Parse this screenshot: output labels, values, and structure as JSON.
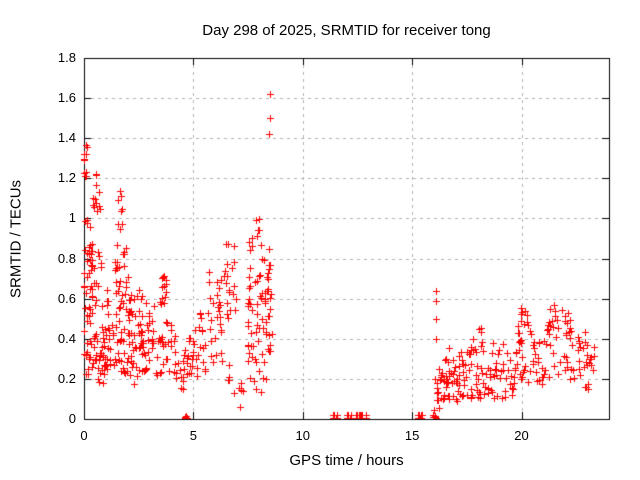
{
  "figure": {
    "background": "#ffffff",
    "axis_color": "#000000",
    "grid_color": "#b0b0b0"
  },
  "chart_data": {
    "type": "scatter",
    "title": "Day 298 of 2025, SRMTID for receiver tong",
    "xlabel": "GPS time / hours",
    "ylabel": "SRMTID / TECUs",
    "xlim": [
      0,
      24
    ],
    "ylim": [
      0,
      1.8
    ],
    "xticks": [
      0,
      5,
      10,
      15,
      20
    ],
    "xtick_labels": [
      "0",
      "5",
      "10",
      "15",
      "20"
    ],
    "yticks": [
      0,
      0.2,
      0.4,
      0.6,
      0.8,
      1,
      1.2,
      1.4,
      1.6,
      1.8
    ],
    "ytick_labels": [
      "0",
      "0.2",
      "0.4",
      "0.6",
      "0.8",
      "1",
      "1.2",
      "1.4",
      "1.6",
      "1.8"
    ],
    "grid": true,
    "legend": "none",
    "marker": "plus",
    "marker_color": "#ff0000",
    "marker_size_px": 7,
    "series_name": "SRMTID",
    "outlier_points": [
      [
        8.5,
        1.62
      ],
      [
        8.48,
        1.5
      ],
      [
        8.45,
        1.42
      ],
      [
        16.08,
        0.64
      ],
      [
        16.1,
        0.59
      ],
      [
        16.11,
        0.5
      ],
      [
        16.09,
        0.4
      ],
      [
        7.12,
        0.06
      ]
    ],
    "zero_value_hours": [
      11.37,
      11.4,
      11.52,
      11.55,
      12.0,
      12.03,
      12.17,
      12.2,
      12.42,
      12.45,
      12.55,
      12.58,
      12.66,
      12.69,
      12.88,
      15.26,
      15.29,
      15.38,
      15.41
    ],
    "clusters_format": "[hour_start, hour_end, tecu_min, tecu_max, n_points]",
    "clusters": [
      [
        0.0,
        0.18,
        1.29,
        1.38,
        6
      ],
      [
        0.0,
        0.12,
        1.17,
        1.24,
        4
      ],
      [
        0.45,
        0.7,
        1.16,
        1.23,
        3
      ],
      [
        0.35,
        0.75,
        1.02,
        1.13,
        9
      ],
      [
        0.05,
        0.45,
        0.93,
        1.01,
        4
      ],
      [
        0.0,
        0.4,
        0.76,
        0.89,
        14
      ],
      [
        0.0,
        0.45,
        0.6,
        0.76,
        12
      ],
      [
        0.0,
        0.35,
        0.44,
        0.56,
        9
      ],
      [
        0.0,
        0.5,
        0.22,
        0.4,
        14
      ],
      [
        0.35,
        0.8,
        0.74,
        0.86,
        6
      ],
      [
        0.4,
        0.95,
        0.55,
        0.68,
        6
      ],
      [
        0.45,
        1.05,
        0.28,
        0.46,
        18
      ],
      [
        0.55,
        1.1,
        0.18,
        0.28,
        9
      ],
      [
        0.85,
        1.45,
        0.26,
        0.47,
        20
      ],
      [
        0.95,
        1.35,
        0.5,
        0.72,
        5
      ],
      [
        1.5,
        1.8,
        0.9,
        1.14,
        9
      ],
      [
        1.4,
        2.0,
        0.78,
        0.9,
        7
      ],
      [
        1.35,
        2.05,
        0.6,
        0.78,
        16
      ],
      [
        1.4,
        2.1,
        0.44,
        0.6,
        13
      ],
      [
        1.45,
        2.2,
        0.26,
        0.44,
        16
      ],
      [
        1.6,
        2.3,
        0.17,
        0.26,
        7
      ],
      [
        2.0,
        2.65,
        0.52,
        0.67,
        11
      ],
      [
        2.0,
        2.7,
        0.38,
        0.52,
        13
      ],
      [
        2.05,
        2.8,
        0.27,
        0.38,
        12
      ],
      [
        2.2,
        2.9,
        0.19,
        0.27,
        7
      ],
      [
        2.8,
        3.55,
        0.42,
        0.59,
        11
      ],
      [
        2.6,
        3.6,
        0.3,
        0.42,
        15
      ],
      [
        2.65,
        3.7,
        0.21,
        0.3,
        9
      ],
      [
        3.55,
        3.8,
        0.5,
        0.76,
        11
      ],
      [
        3.5,
        4.3,
        0.3,
        0.5,
        14
      ],
      [
        3.6,
        4.5,
        0.22,
        0.3,
        10
      ],
      [
        4.1,
        4.6,
        0.15,
        0.22,
        6
      ],
      [
        4.5,
        5.1,
        0.28,
        0.42,
        14
      ],
      [
        4.55,
        5.2,
        0.18,
        0.28,
        8
      ],
      [
        4.6,
        4.75,
        0.0,
        0.02,
        4
      ],
      [
        5.0,
        5.6,
        0.24,
        0.46,
        12
      ],
      [
        5.2,
        5.5,
        0.5,
        0.58,
        3
      ],
      [
        5.6,
        6.3,
        0.52,
        0.74,
        14
      ],
      [
        5.6,
        6.35,
        0.38,
        0.52,
        9
      ],
      [
        5.7,
        6.4,
        0.28,
        0.38,
        5
      ],
      [
        6.3,
        6.95,
        0.6,
        0.8,
        11
      ],
      [
        6.35,
        6.9,
        0.82,
        0.89,
        3
      ],
      [
        6.4,
        7.0,
        0.45,
        0.6,
        6
      ],
      [
        6.6,
        7.35,
        0.12,
        0.3,
        9
      ],
      [
        7.5,
        8.25,
        0.7,
        0.92,
        11
      ],
      [
        7.85,
        8.05,
        0.91,
        1.01,
        6
      ],
      [
        7.45,
        8.3,
        0.5,
        0.7,
        17
      ],
      [
        7.45,
        8.3,
        0.3,
        0.5,
        16
      ],
      [
        7.5,
        8.35,
        0.13,
        0.3,
        11
      ],
      [
        8.25,
        8.6,
        0.45,
        0.7,
        12
      ],
      [
        8.3,
        8.62,
        0.28,
        0.45,
        8
      ],
      [
        8.35,
        8.55,
        0.7,
        0.85,
        6
      ],
      [
        15.92,
        16.12,
        0.0,
        0.02,
        6
      ],
      [
        16.0,
        16.3,
        0.04,
        0.2,
        10
      ],
      [
        16.2,
        17.3,
        0.08,
        0.26,
        38
      ],
      [
        16.4,
        17.3,
        0.26,
        0.36,
        10
      ],
      [
        17.3,
        18.4,
        0.1,
        0.28,
        30
      ],
      [
        17.5,
        18.45,
        0.28,
        0.4,
        12
      ],
      [
        17.95,
        18.2,
        0.4,
        0.46,
        3
      ],
      [
        18.4,
        19.6,
        0.1,
        0.3,
        32
      ],
      [
        18.6,
        19.6,
        0.3,
        0.38,
        6
      ],
      [
        19.6,
        20.6,
        0.18,
        0.42,
        26
      ],
      [
        19.8,
        20.5,
        0.42,
        0.52,
        10
      ],
      [
        19.95,
        20.35,
        0.52,
        0.57,
        4
      ],
      [
        20.6,
        21.15,
        0.15,
        0.4,
        16
      ],
      [
        21.15,
        22.3,
        0.3,
        0.5,
        26
      ],
      [
        21.3,
        22.2,
        0.5,
        0.58,
        7
      ],
      [
        21.15,
        22.35,
        0.18,
        0.3,
        10
      ],
      [
        22.3,
        23.0,
        0.25,
        0.45,
        14
      ],
      [
        22.9,
        23.35,
        0.24,
        0.36,
        8
      ],
      [
        22.4,
        23.1,
        0.15,
        0.25,
        6
      ]
    ]
  }
}
